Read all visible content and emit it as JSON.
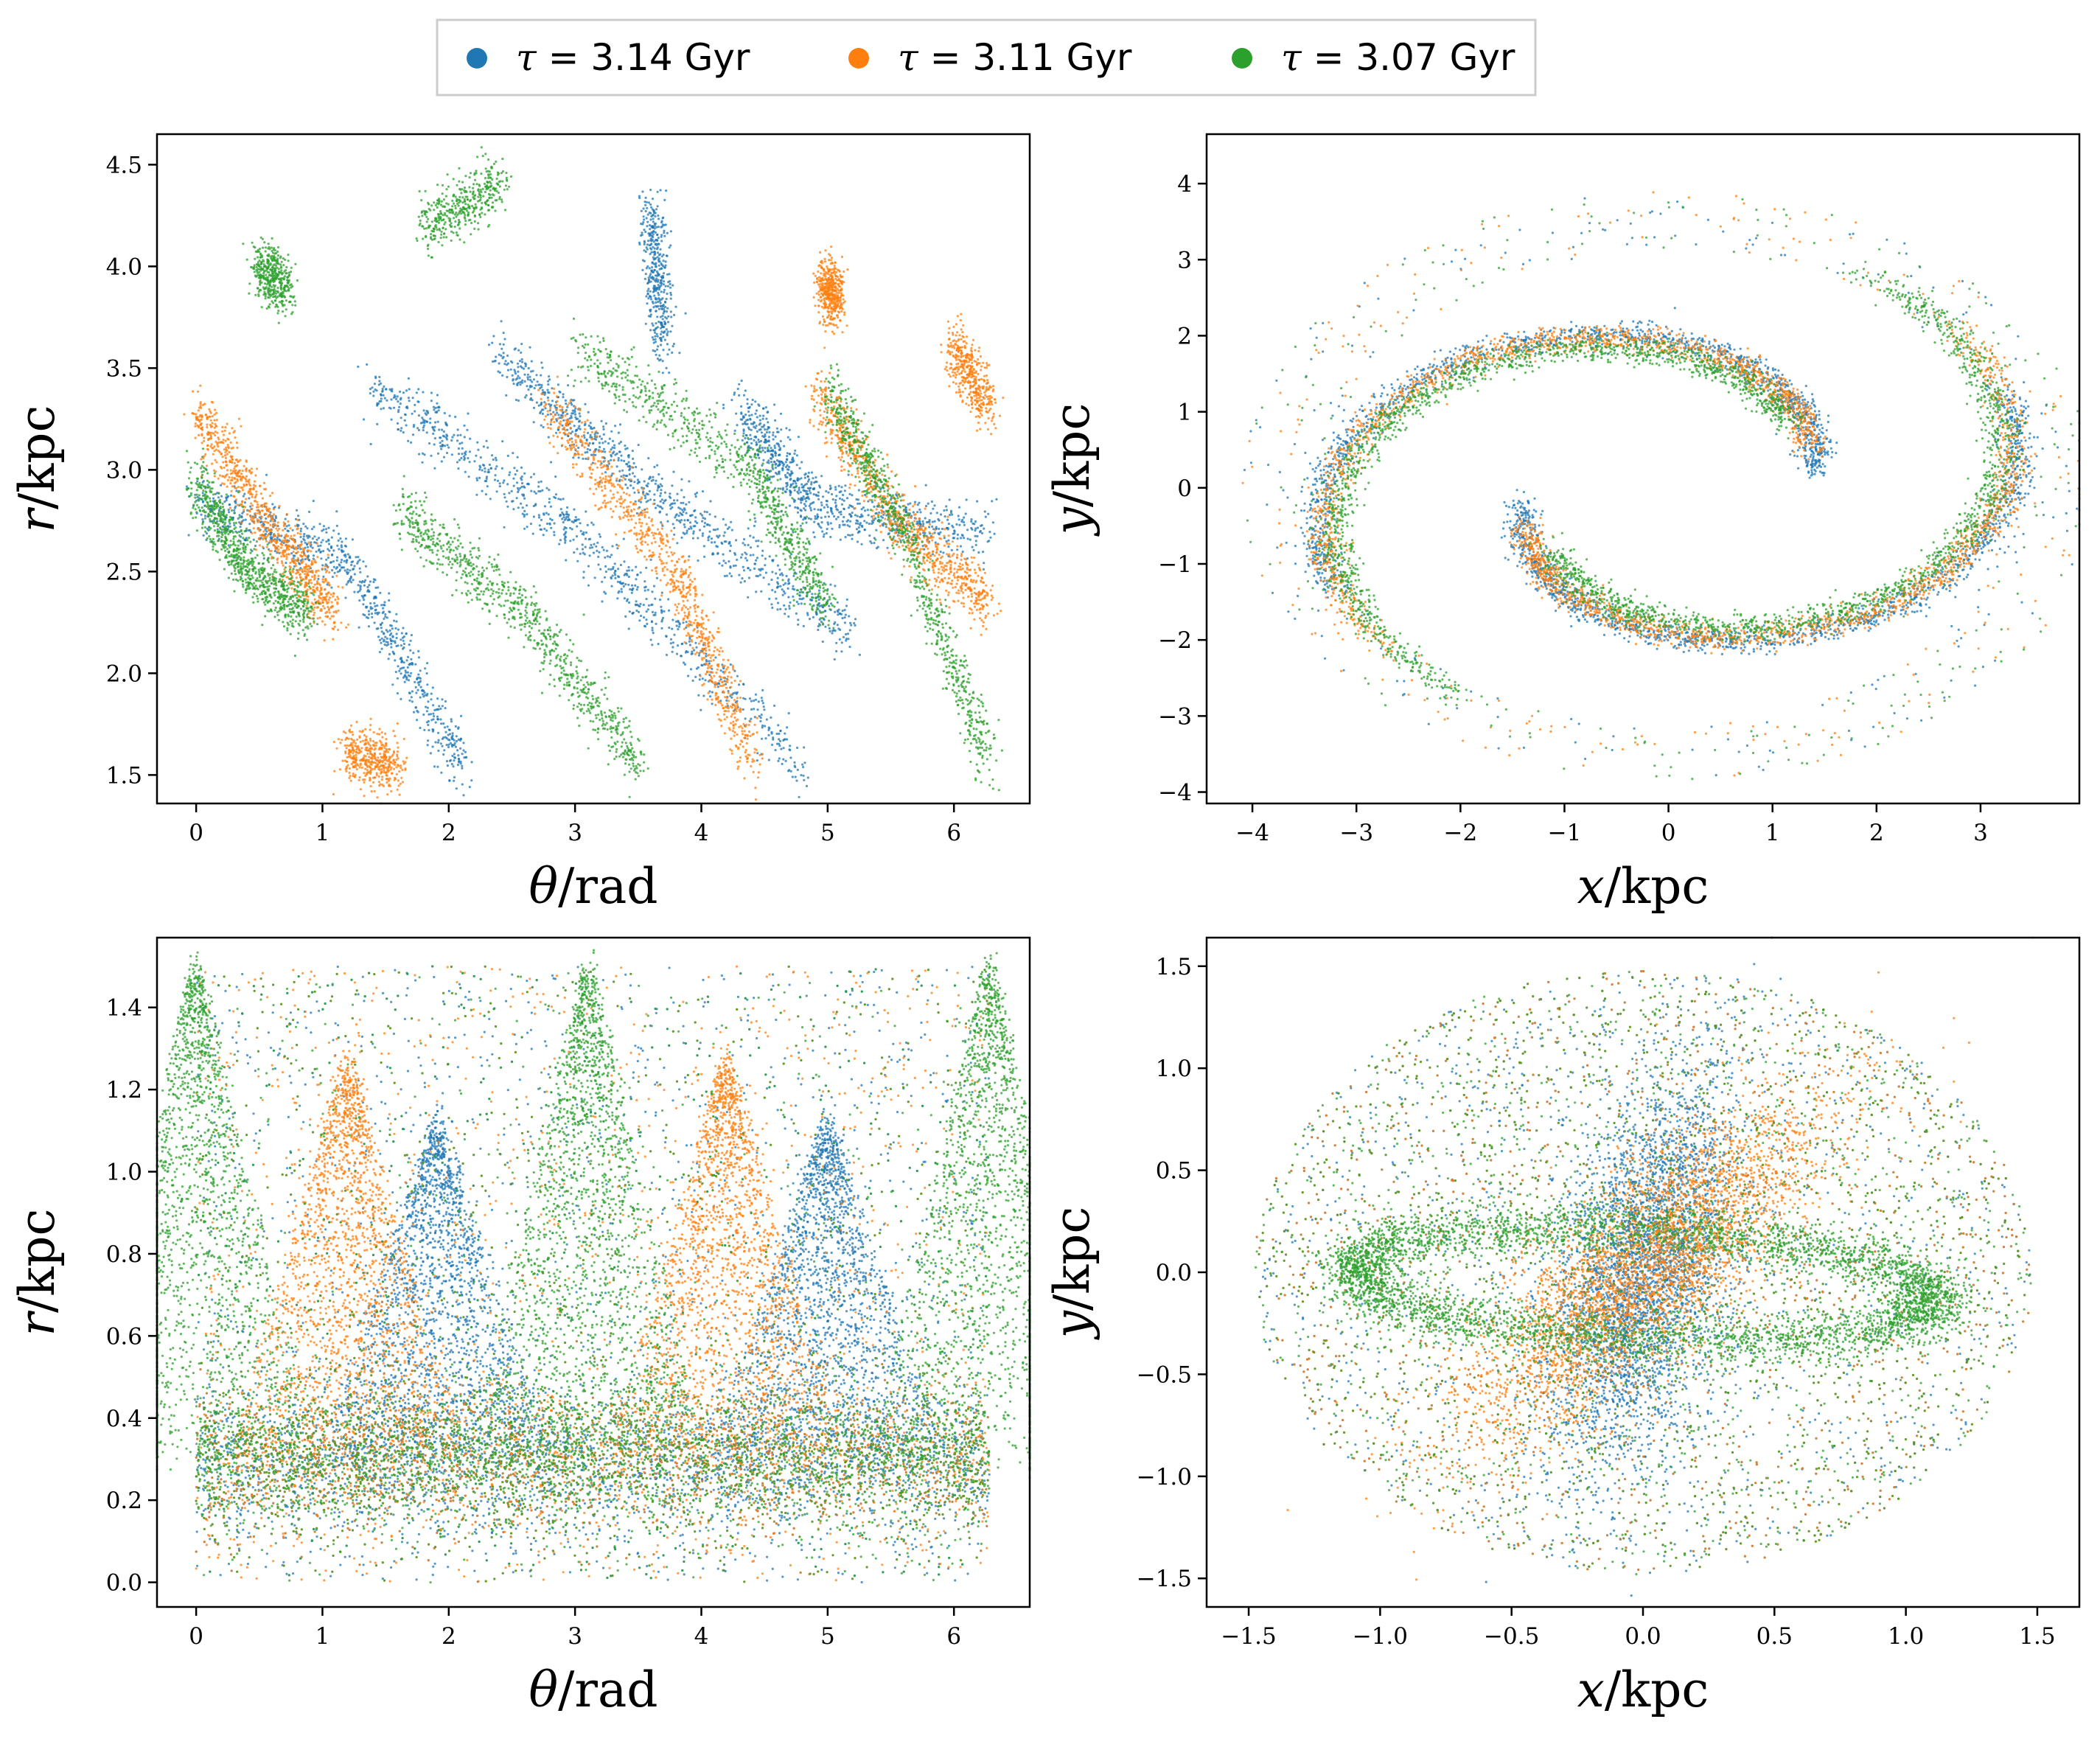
{
  "legend": {
    "entries": [
      {
        "symbol": "τ",
        "text": " = 3.14 Gyr",
        "color": "#1f77b4"
      },
      {
        "symbol": "τ",
        "text": " = 3.11 Gyr",
        "color": "#ff7f0e"
      },
      {
        "symbol": "τ",
        "text": " = 3.07 Gyr",
        "color": "#2ca02c"
      }
    ]
  },
  "chart_data": [
    {
      "type": "scatter",
      "id": "top-left",
      "xlabel_var": "θ",
      "xlabel_unit": "/rad",
      "ylabel_var": "r",
      "ylabel_unit": "/kpc",
      "xlim": [
        -0.31,
        6.6
      ],
      "ylim": [
        1.36,
        4.65
      ],
      "xticks": [
        0,
        1,
        2,
        3,
        4,
        5,
        6
      ],
      "xtick_labels": [
        "0",
        "1",
        "2",
        "3",
        "4",
        "5",
        "6"
      ],
      "yticks": [
        1.5,
        2.0,
        2.5,
        3.0,
        3.5,
        4.0,
        4.5
      ],
      "ytick_labels": [
        "1.5",
        "2.0",
        "2.5",
        "3.0",
        "3.5",
        "4.0",
        "4.5"
      ],
      "series": [
        {
          "name": "τ = 3.14 Gyr",
          "color": "#1f77b4",
          "bands": [
            [
              0.0,
              2.85,
              1.2,
              2.55,
              2.1,
              1.55
            ],
            [
              1.4,
              3.4,
              3.0,
              2.7,
              4.8,
              1.55
            ],
            [
              2.4,
              3.55,
              3.6,
              2.9,
              5.2,
              2.2
            ],
            [
              4.3,
              3.3,
              4.9,
              2.8,
              6.28,
              2.7
            ],
            [
              3.6,
              4.3,
              3.7,
              3.6
            ]
          ]
        },
        {
          "name": "τ = 3.11 Gyr",
          "color": "#ff7f0e",
          "bands": [
            [
              0.0,
              3.3,
              0.6,
              2.7,
              1.1,
              2.3
            ],
            [
              2.8,
              3.3,
              3.8,
              2.5,
              4.4,
              1.55
            ],
            [
              4.9,
              3.4,
              5.6,
              2.7,
              6.28,
              2.35
            ],
            [
              1.2,
              1.6,
              1.6,
              1.55
            ],
            [
              6.0,
              3.6,
              6.28,
              3.3
            ],
            [
              5.0,
              3.95,
              5.05,
              3.8
            ]
          ]
        },
        {
          "name": "τ = 3.07 Gyr",
          "color": "#2ca02c",
          "bands": [
            [
              0.0,
              2.95,
              0.4,
              2.5,
              0.9,
              2.3
            ],
            [
              1.6,
              2.8,
              2.6,
              2.3,
              3.5,
              1.55
            ],
            [
              3.0,
              3.6,
              4.4,
              3.0,
              5.0,
              2.3
            ],
            [
              5.0,
              3.4,
              5.6,
              2.7,
              6.28,
              1.55
            ],
            [
              1.8,
              4.2,
              2.4,
              4.4
            ],
            [
              0.5,
              4.0,
              0.7,
              3.9
            ]
          ]
        }
      ]
    },
    {
      "type": "scatter",
      "id": "top-right",
      "xlabel_var": "x",
      "xlabel_unit": "/kpc",
      "ylabel_var": "y",
      "ylabel_unit": "/kpc",
      "xlim": [
        -4.44,
        3.95
      ],
      "ylim": [
        -4.15,
        4.65
      ],
      "xticks": [
        -4,
        -3,
        -2,
        -1,
        0,
        1,
        2,
        3
      ],
      "xtick_labels": [
        "−4",
        "−3",
        "−2",
        "−1",
        "0",
        "1",
        "2",
        "3"
      ],
      "yticks": [
        -4,
        -3,
        -2,
        -1,
        0,
        1,
        2,
        3,
        4
      ],
      "ytick_labels": [
        "−4",
        "−3",
        "−2",
        "−1",
        "0",
        "1",
        "2",
        "3",
        "4"
      ],
      "series": [
        {
          "name": "τ = 3.14 Gyr",
          "color": "#1f77b4",
          "r_in": 1.4,
          "r_out": 3.6,
          "phase": 0.2
        },
        {
          "name": "τ = 3.11 Gyr",
          "color": "#ff7f0e",
          "r_in": 1.5,
          "r_out": 3.7,
          "phase": 0.45
        },
        {
          "name": "τ = 3.07 Gyr",
          "color": "#2ca02c",
          "r_in": 1.5,
          "r_out": 3.8,
          "phase": 0.75
        }
      ]
    },
    {
      "type": "scatter",
      "id": "bottom-left",
      "xlabel_var": "θ",
      "xlabel_unit": "/rad",
      "ylabel_var": "r",
      "ylabel_unit": "/kpc",
      "xlim": [
        -0.31,
        6.6
      ],
      "ylim": [
        -0.06,
        1.57
      ],
      "xticks": [
        0,
        1,
        2,
        3,
        4,
        5,
        6
      ],
      "xtick_labels": [
        "0",
        "1",
        "2",
        "3",
        "4",
        "5",
        "6"
      ],
      "yticks": [
        0.0,
        0.2,
        0.4,
        0.6,
        0.8,
        1.0,
        1.2,
        1.4
      ],
      "ytick_labels": [
        "0.0",
        "0.2",
        "0.4",
        "0.6",
        "0.8",
        "1.0",
        "1.2",
        "1.4"
      ],
      "series": [
        {
          "name": "τ = 3.14 Gyr",
          "color": "#1f77b4",
          "peaks": [
            1.9,
            5.0
          ],
          "peak_r": 1.1
        },
        {
          "name": "τ = 3.11 Gyr",
          "color": "#ff7f0e",
          "peaks": [
            1.2,
            4.2
          ],
          "peak_r": 1.25
        },
        {
          "name": "τ = 3.07 Gyr",
          "color": "#2ca02c",
          "peaks": [
            0.0,
            3.1,
            6.28
          ],
          "peak_r": 1.48
        }
      ]
    },
    {
      "type": "scatter",
      "id": "bottom-right",
      "xlabel_var": "x",
      "xlabel_unit": "/kpc",
      "ylabel_var": "y",
      "ylabel_unit": "/kpc",
      "xlim": [
        -1.66,
        1.66
      ],
      "ylim": [
        -1.64,
        1.64
      ],
      "xticks": [
        -1.5,
        -1.0,
        -0.5,
        0.0,
        0.5,
        1.0,
        1.5
      ],
      "xtick_labels": [
        "−1.5",
        "−1.0",
        "−0.5",
        "0.0",
        "0.5",
        "1.0",
        "1.5"
      ],
      "yticks": [
        -1.5,
        -1.0,
        -0.5,
        0.0,
        0.5,
        1.0,
        1.5
      ],
      "ytick_labels": [
        "−1.5",
        "−1.0",
        "−0.5",
        "0.0",
        "0.5",
        "1.0",
        "1.5"
      ],
      "series": [
        {
          "name": "τ = 3.14 Gyr",
          "color": "#1f77b4",
          "bar_angle_deg": 80,
          "bar_a": 1.05,
          "bar_b": 0.28
        },
        {
          "name": "τ = 3.11 Gyr",
          "color": "#ff7f0e",
          "bar_angle_deg": 52,
          "bar_a": 1.15,
          "bar_b": 0.3
        },
        {
          "name": "τ = 3.07 Gyr",
          "color": "#2ca02c",
          "ring_a": 1.1,
          "ring_b": 0.27,
          "ring_angle_deg": -4
        }
      ]
    }
  ]
}
